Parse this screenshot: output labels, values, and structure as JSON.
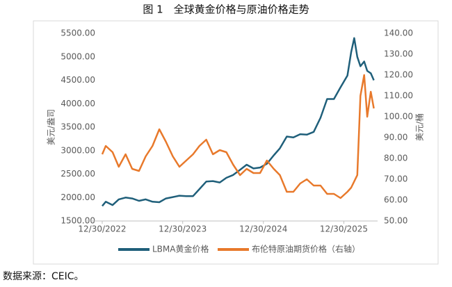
{
  "chart_data": {
    "type": "line",
    "title": "图 1　全球黄金价格与原油价格走势",
    "source": "数据来源：CEIC。",
    "y_label": "美元/盎司",
    "y2_label": "美元/桶",
    "x": [
      "2022-12-30",
      "2023-01-15",
      "2023-02-15",
      "2023-03-15",
      "2023-04-15",
      "2023-05-15",
      "2023-06-15",
      "2023-07-15",
      "2023-08-15",
      "2023-09-15",
      "2023-10-15",
      "2023-11-15",
      "2023-12-15",
      "2024-01-15",
      "2024-02-15",
      "2024-03-15",
      "2024-04-15",
      "2024-05-15",
      "2024-06-15",
      "2024-07-15",
      "2024-08-15",
      "2024-09-15",
      "2024-10-15",
      "2024-11-15",
      "2024-12-15",
      "2025-01-15",
      "2025-02-15",
      "2025-03-15",
      "2025-04-15",
      "2025-05-15",
      "2025-06-15",
      "2025-07-15",
      "2025-08-15",
      "2025-09-15",
      "2025-10-15",
      "2025-11-15",
      "2025-12-15",
      "2026-01-15",
      "2026-02-01",
      "2026-02-15",
      "2026-03-01",
      "2026-03-15",
      "2026-04-01",
      "2026-04-15",
      "2026-05-01",
      "2026-05-15"
    ],
    "series": [
      {
        "name": "LBMA黄金价格",
        "color": "#1f5f7a",
        "axis": "y",
        "values": [
          1820,
          1910,
          1840,
          1960,
          2000,
          1980,
          1930,
          1960,
          1910,
          1900,
          1980,
          2010,
          2040,
          2030,
          2030,
          2180,
          2340,
          2350,
          2320,
          2420,
          2480,
          2590,
          2700,
          2620,
          2640,
          2720,
          2900,
          3050,
          3300,
          3280,
          3350,
          3340,
          3400,
          3700,
          4100,
          4100,
          4350,
          4600,
          5100,
          5400,
          5000,
          4800,
          4900,
          4700,
          4650,
          4500
        ]
      },
      {
        "name": "布伦特原油期货价格（右轴）",
        "color": "#e8792b",
        "axis": "y2",
        "values": [
          82,
          86,
          83,
          76,
          82,
          75,
          74,
          81,
          86,
          94,
          88,
          81,
          76,
          79,
          82,
          86,
          89,
          82,
          84,
          83,
          77,
          72,
          75,
          73,
          73,
          79,
          75,
          72,
          64,
          64,
          68,
          70,
          67,
          67,
          63,
          63,
          61,
          64,
          66,
          69,
          72,
          110,
          120,
          100,
          112,
          104
        ]
      }
    ],
    "xlim": [
      "2022-12-30",
      "2026-06-01"
    ],
    "xticks": [
      {
        "value": "2022-12-30",
        "label": "12/30/2022"
      },
      {
        "value": "2023-12-30",
        "label": "12/30/2023"
      },
      {
        "value": "2024-12-30",
        "label": "12/30/2024"
      },
      {
        "value": "2025-12-30",
        "label": "12/30/2025"
      }
    ],
    "ylim": [
      1500,
      5500
    ],
    "yticks": [
      {
        "value": 1500,
        "label": "1500.00"
      },
      {
        "value": 2000,
        "label": "2000.00"
      },
      {
        "value": 2500,
        "label": "2500.00"
      },
      {
        "value": 3000,
        "label": "3000.00"
      },
      {
        "value": 3500,
        "label": "3500.00"
      },
      {
        "value": 4000,
        "label": "4000.00"
      },
      {
        "value": 4500,
        "label": "4500.00"
      },
      {
        "value": 5000,
        "label": "5000.00"
      },
      {
        "value": 5500,
        "label": "5500.00"
      }
    ],
    "y2lim": [
      50,
      140
    ],
    "y2ticks": [
      {
        "value": 50,
        "label": "50.00"
      },
      {
        "value": 60,
        "label": "60.00"
      },
      {
        "value": 70,
        "label": "70.00"
      },
      {
        "value": 80,
        "label": "80.00"
      },
      {
        "value": 90,
        "label": "90.00"
      },
      {
        "value": 100,
        "label": "100.00"
      },
      {
        "value": 110,
        "label": "110.00"
      },
      {
        "value": 120,
        "label": "120.00"
      },
      {
        "value": 130,
        "label": "130.00"
      },
      {
        "value": 140,
        "label": "140.00"
      }
    ]
  }
}
